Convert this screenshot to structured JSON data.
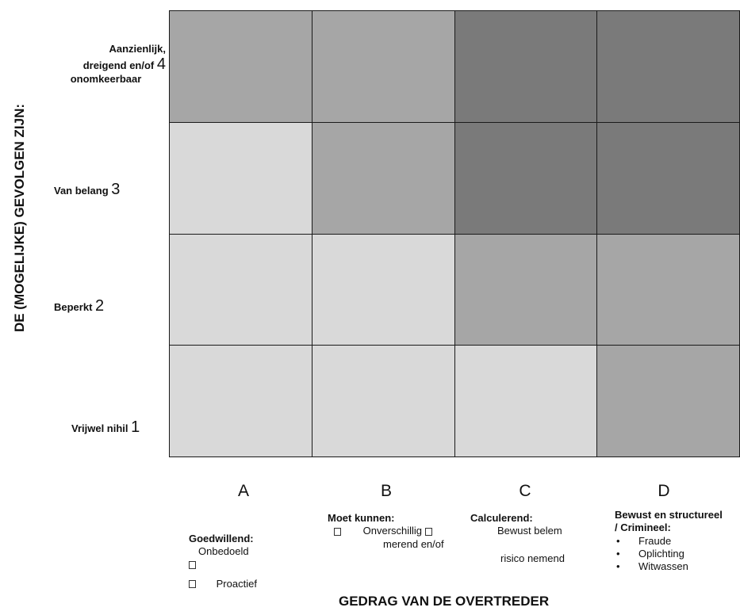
{
  "y_axis_label": "DE (MOGELIJKE) GEVOLGEN ZIJN:",
  "x_axis_label": "GEDRAG VAN DE OVERTREDER",
  "rows": [
    {
      "label_lines": [
        "Aanzienlijk,",
        "dreigend en/of",
        "onomkeerbaar"
      ],
      "number": "4"
    },
    {
      "label": "Van belang",
      "number": "3"
    },
    {
      "label": "Beperkt",
      "number": "2"
    },
    {
      "label": "Vrijwel nihil",
      "number": "1"
    }
  ],
  "columns": [
    "A",
    "B",
    "C",
    "D"
  ],
  "cell_shades": [
    [
      "mid",
      "mid",
      "dark",
      "dark"
    ],
    [
      "light",
      "mid",
      "dark",
      "dark"
    ],
    [
      "light",
      "light",
      "mid",
      "mid"
    ],
    [
      "light",
      "light",
      "light",
      "mid"
    ]
  ],
  "shade_colors": {
    "light": "#d9d9d9",
    "mid": "#a6a6a6",
    "dark": "#7a7a7a"
  },
  "descriptions": {
    "A": {
      "title": "Goedwillend:",
      "line1": "Onbedoeld",
      "line2": "Proactief"
    },
    "B": {
      "title": "Moet kunnen:",
      "line1": "Onverschillig",
      "line2": "merend en/of"
    },
    "C": {
      "title": "Calculerend:",
      "line1": "Bewust belem",
      "line2": "risico nemend"
    },
    "D": {
      "title_line1": "Bewust en structureel",
      "title_line2": "/ Crimineel:",
      "items": [
        "Fraude",
        "Oplichting",
        "Witwassen"
      ]
    }
  }
}
